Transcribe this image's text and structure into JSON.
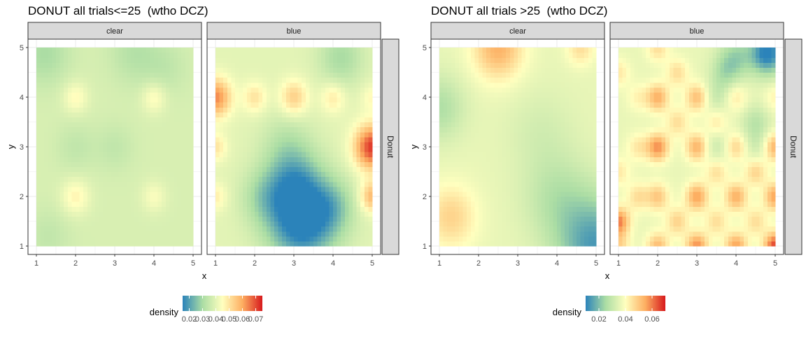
{
  "chart_data": [
    {
      "type": "heatmap",
      "title": "DONUT all trials<=25  (wtho DCZ)",
      "xlabel": "x",
      "ylabel": "y",
      "xlim": [
        1,
        5
      ],
      "ylim": [
        1,
        5
      ],
      "x_ticks": [
        "1",
        "2",
        "3",
        "4",
        "5"
      ],
      "y_ticks": [
        "1",
        "2",
        "3",
        "4",
        "5"
      ],
      "facet_columns": [
        "clear",
        "blue"
      ],
      "facet_row": "Donut",
      "legend": {
        "title": "density",
        "placement": "bottom",
        "ticks": [
          0.02,
          0.03,
          0.04,
          0.05,
          0.06,
          0.07
        ],
        "tick_labels": [
          "0.02",
          "0.03",
          "0.04",
          "0.05",
          "0.06",
          "0.07"
        ],
        "range": [
          0.015,
          0.075
        ]
      },
      "palette": [
        "#2b83ba",
        "#abdda4",
        "#ffffbf",
        "#fdae61",
        "#d7191c"
      ],
      "grid": true,
      "panels": [
        {
          "facet": "clear",
          "base": 0.038,
          "blobs": [
            {
              "x": 2.0,
              "y": 4.0,
              "s": 0.22,
              "a": 0.008
            },
            {
              "x": 4.0,
              "y": 4.0,
              "s": 0.22,
              "a": 0.008
            },
            {
              "x": 2.0,
              "y": 2.0,
              "s": 0.25,
              "a": 0.009
            },
            {
              "x": 4.0,
              "y": 2.0,
              "s": 0.22,
              "a": 0.006
            },
            {
              "x": 2.0,
              "y": 3.0,
              "s": 0.35,
              "a": -0.004
            },
            {
              "x": 3.0,
              "y": 3.0,
              "s": 0.35,
              "a": -0.004
            },
            {
              "x": 1.2,
              "y": 4.9,
              "s": 0.45,
              "a": -0.008
            },
            {
              "x": 3.5,
              "y": 4.9,
              "s": 0.45,
              "a": -0.006
            },
            {
              "x": 4.3,
              "y": 4.6,
              "s": 0.4,
              "a": -0.004
            },
            {
              "x": 1.3,
              "y": 1.2,
              "s": 0.4,
              "a": -0.004
            }
          ]
        },
        {
          "facet": "blue",
          "base": 0.04,
          "blobs": [
            {
              "x": 1.0,
              "y": 4.0,
              "s": 0.28,
              "a": 0.024
            },
            {
              "x": 2.0,
              "y": 4.0,
              "s": 0.22,
              "a": 0.01
            },
            {
              "x": 3.0,
              "y": 4.0,
              "s": 0.25,
              "a": 0.014
            },
            {
              "x": 4.0,
              "y": 4.0,
              "s": 0.22,
              "a": 0.009
            },
            {
              "x": 5.0,
              "y": 3.0,
              "s": 0.32,
              "a": 0.032
            },
            {
              "x": 5.0,
              "y": 2.0,
              "s": 0.22,
              "a": 0.018
            },
            {
              "x": 1.0,
              "y": 3.0,
              "s": 0.2,
              "a": 0.01
            },
            {
              "x": 1.0,
              "y": 2.0,
              "s": 0.2,
              "a": 0.008
            },
            {
              "x": 5.0,
              "y": 4.0,
              "s": 0.2,
              "a": 0.006
            },
            {
              "x": 3.2,
              "y": 1.5,
              "s": 0.6,
              "a": -0.028
            },
            {
              "x": 3.0,
              "y": 2.3,
              "s": 0.5,
              "a": -0.015
            },
            {
              "x": 4.0,
              "y": 1.8,
              "s": 0.4,
              "a": -0.01
            },
            {
              "x": 2.2,
              "y": 2.0,
              "s": 0.4,
              "a": -0.008
            },
            {
              "x": 4.2,
              "y": 4.8,
              "s": 0.4,
              "a": -0.01
            },
            {
              "x": 2.8,
              "y": 3.1,
              "s": 0.45,
              "a": -0.006
            }
          ]
        }
      ]
    },
    {
      "type": "heatmap",
      "title": "DONUT all trials >25  (wtho DCZ)",
      "xlabel": "x",
      "ylabel": "y",
      "xlim": [
        1,
        5
      ],
      "ylim": [
        1,
        5
      ],
      "x_ticks": [
        "1",
        "2",
        "3",
        "4",
        "5"
      ],
      "y_ticks": [
        "1",
        "2",
        "3",
        "4",
        "5"
      ],
      "facet_columns": [
        "clear",
        "blue"
      ],
      "facet_row": "Donut",
      "legend": {
        "title": "density",
        "placement": "bottom",
        "ticks": [
          0.02,
          0.04,
          0.06
        ],
        "tick_labels": [
          "0.02",
          "0.04",
          "0.06"
        ],
        "range": [
          0.01,
          0.07
        ]
      },
      "palette": [
        "#2b83ba",
        "#abdda4",
        "#ffffbf",
        "#fdae61",
        "#d7191c"
      ],
      "grid": true,
      "panels": [
        {
          "facet": "clear",
          "base": 0.036,
          "blobs": [
            {
              "x": 2.5,
              "y": 5.0,
              "s": 0.45,
              "a": 0.018
            },
            {
              "x": 4.6,
              "y": 5.0,
              "s": 0.25,
              "a": 0.01
            },
            {
              "x": 1.3,
              "y": 1.6,
              "s": 0.45,
              "a": 0.012
            },
            {
              "x": 5.0,
              "y": 1.0,
              "s": 0.7,
              "a": -0.022
            },
            {
              "x": 4.0,
              "y": 2.0,
              "s": 0.6,
              "a": -0.008
            },
            {
              "x": 1.0,
              "y": 3.8,
              "s": 0.45,
              "a": -0.01
            },
            {
              "x": 3.6,
              "y": 3.3,
              "s": 0.6,
              "a": -0.004
            }
          ]
        },
        {
          "facet": "blue",
          "base": 0.036,
          "blobs": [
            {
              "x": 1.0,
              "y": 1.5,
              "s": 0.2,
              "a": 0.024
            },
            {
              "x": 1.0,
              "y": 1.0,
              "s": 0.2,
              "a": 0.012
            },
            {
              "x": 1.0,
              "y": 2.5,
              "s": 0.2,
              "a": 0.008
            },
            {
              "x": 1.0,
              "y": 4.5,
              "s": 0.2,
              "a": 0.008
            },
            {
              "x": 1.5,
              "y": 2.0,
              "s": 0.2,
              "a": 0.01
            },
            {
              "x": 1.5,
              "y": 3.0,
              "s": 0.2,
              "a": 0.008
            },
            {
              "x": 1.5,
              "y": 4.0,
              "s": 0.2,
              "a": 0.006
            },
            {
              "x": 2.0,
              "y": 1.0,
              "s": 0.2,
              "a": 0.016
            },
            {
              "x": 2.0,
              "y": 2.0,
              "s": 0.2,
              "a": 0.014
            },
            {
              "x": 2.0,
              "y": 3.0,
              "s": 0.2,
              "a": 0.022
            },
            {
              "x": 2.0,
              "y": 4.0,
              "s": 0.2,
              "a": 0.018
            },
            {
              "x": 2.0,
              "y": 5.0,
              "s": 0.2,
              "a": 0.01
            },
            {
              "x": 2.5,
              "y": 1.5,
              "s": 0.2,
              "a": 0.012
            },
            {
              "x": 2.5,
              "y": 3.5,
              "s": 0.2,
              "a": 0.01
            },
            {
              "x": 2.5,
              "y": 4.5,
              "s": 0.2,
              "a": 0.01
            },
            {
              "x": 3.0,
              "y": 1.0,
              "s": 0.2,
              "a": 0.022
            },
            {
              "x": 3.0,
              "y": 2.0,
              "s": 0.2,
              "a": 0.02
            },
            {
              "x": 3.0,
              "y": 3.0,
              "s": 0.2,
              "a": 0.018
            },
            {
              "x": 3.0,
              "y": 4.0,
              "s": 0.2,
              "a": 0.016
            },
            {
              "x": 3.5,
              "y": 1.5,
              "s": 0.2,
              "a": 0.01
            },
            {
              "x": 3.5,
              "y": 2.5,
              "s": 0.2,
              "a": 0.01
            },
            {
              "x": 3.5,
              "y": 3.5,
              "s": 0.2,
              "a": 0.008
            },
            {
              "x": 4.0,
              "y": 1.0,
              "s": 0.2,
              "a": 0.02
            },
            {
              "x": 4.0,
              "y": 2.0,
              "s": 0.2,
              "a": 0.018
            },
            {
              "x": 4.0,
              "y": 3.0,
              "s": 0.2,
              "a": 0.012
            },
            {
              "x": 4.0,
              "y": 4.0,
              "s": 0.2,
              "a": 0.008
            },
            {
              "x": 4.5,
              "y": 1.5,
              "s": 0.2,
              "a": 0.01
            },
            {
              "x": 4.5,
              "y": 2.5,
              "s": 0.2,
              "a": 0.012
            },
            {
              "x": 5.0,
              "y": 1.0,
              "s": 0.2,
              "a": 0.03
            },
            {
              "x": 5.0,
              "y": 2.0,
              "s": 0.2,
              "a": 0.02
            },
            {
              "x": 5.0,
              "y": 3.0,
              "s": 0.2,
              "a": 0.018
            },
            {
              "x": 5.0,
              "y": 4.0,
              "s": 0.2,
              "a": 0.006
            },
            {
              "x": 4.8,
              "y": 4.9,
              "s": 0.3,
              "a": -0.028
            },
            {
              "x": 4.0,
              "y": 4.8,
              "s": 0.3,
              "a": -0.012
            },
            {
              "x": 3.7,
              "y": 4.5,
              "s": 0.25,
              "a": -0.008
            },
            {
              "x": 3.5,
              "y": 4.0,
              "s": 0.25,
              "a": -0.006
            },
            {
              "x": 4.5,
              "y": 3.5,
              "s": 0.25,
              "a": -0.008
            },
            {
              "x": 3.5,
              "y": 3.0,
              "s": 0.25,
              "a": -0.006
            },
            {
              "x": 4.5,
              "y": 3.0,
              "s": 0.25,
              "a": -0.005
            }
          ]
        }
      ]
    }
  ]
}
